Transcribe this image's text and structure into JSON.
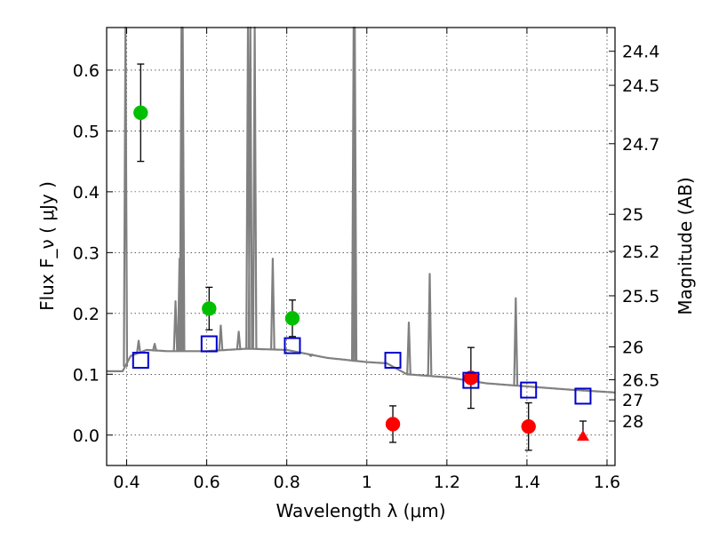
{
  "chart_data": {
    "type": "scatter",
    "title": "",
    "xlabel": "Wavelength  λ (μm)",
    "ylabel": "Flux  F_ν  ( μJy )",
    "ylabel_right": "Magnitude (AB)",
    "xlim": [
      0.35,
      1.62
    ],
    "ylim": [
      -0.05,
      0.67
    ],
    "grid": true,
    "legend": "none",
    "x_ticks": [
      0.4,
      0.6,
      0.8,
      1.0,
      1.2,
      1.4,
      1.6
    ],
    "x_tick_labels": [
      "0.4",
      "0.6",
      "0.8",
      "1",
      "1.2",
      "1.4",
      "1.6"
    ],
    "y_ticks": [
      0.0,
      0.1,
      0.2,
      0.3,
      0.4,
      0.5,
      0.6
    ],
    "y_tick_labels": [
      "0.0",
      "0.1",
      "0.2",
      "0.3",
      "0.4",
      "0.5",
      "0.6"
    ],
    "right_ticks": [
      {
        "label": "24.4",
        "flux": 0.631
      },
      {
        "label": "24.5",
        "flux": 0.575
      },
      {
        "label": "24.7",
        "flux": 0.479
      },
      {
        "label": "25",
        "flux": 0.363
      },
      {
        "label": "25.2",
        "flux": 0.302
      },
      {
        "label": "25.5",
        "flux": 0.229
      },
      {
        "label": "26",
        "flux": 0.145
      },
      {
        "label": "26.5",
        "flux": 0.091
      },
      {
        "label": "27",
        "flux": 0.058
      },
      {
        "label": "28",
        "flux": 0.023
      }
    ],
    "series": [
      {
        "marker": "circle",
        "color": "#00bf00",
        "points": [
          {
            "x": 0.435,
            "y": 0.53,
            "err": 0.08
          },
          {
            "x": 0.606,
            "y": 0.208,
            "err": 0.035
          },
          {
            "x": 0.814,
            "y": 0.192,
            "err": 0.03
          }
        ]
      },
      {
        "marker": "circle",
        "color": "#ff0000",
        "points": [
          {
            "x": 1.065,
            "y": 0.018,
            "err": 0.03
          },
          {
            "x": 1.26,
            "y": 0.094,
            "err": 0.05
          },
          {
            "x": 1.404,
            "y": 0.014,
            "err": 0.039
          }
        ]
      },
      {
        "marker": "triangle",
        "color": "#ff0000",
        "points": [
          {
            "x": 1.54,
            "y": -0.002,
            "err_up": 0.025
          }
        ]
      },
      {
        "marker": "open-square",
        "color": "#0000cc",
        "points": [
          {
            "x": 0.435,
            "y": 0.123
          },
          {
            "x": 0.606,
            "y": 0.15
          },
          {
            "x": 0.814,
            "y": 0.147
          },
          {
            "x": 1.065,
            "y": 0.123
          },
          {
            "x": 1.26,
            "y": 0.09
          },
          {
            "x": 1.404,
            "y": 0.074
          },
          {
            "x": 1.54,
            "y": 0.064
          }
        ]
      },
      {
        "marker": "line",
        "color": "#808080",
        "continuum": [
          [
            0.35,
            0.105
          ],
          [
            0.39,
            0.105
          ],
          [
            0.41,
            0.13
          ],
          [
            0.45,
            0.14
          ],
          [
            0.5,
            0.138
          ],
          [
            0.6,
            0.138
          ],
          [
            0.7,
            0.142
          ],
          [
            0.8,
            0.14
          ],
          [
            0.9,
            0.127
          ],
          [
            1.0,
            0.12
          ],
          [
            1.05,
            0.118
          ],
          [
            1.1,
            0.1
          ],
          [
            1.2,
            0.095
          ],
          [
            1.3,
            0.085
          ],
          [
            1.4,
            0.08
          ],
          [
            1.5,
            0.075
          ],
          [
            1.62,
            0.07
          ]
        ],
        "lines": [
          [
            0.397,
            0.67
          ],
          [
            0.43,
            0.155
          ],
          [
            0.47,
            0.15
          ],
          [
            0.522,
            0.22
          ],
          [
            0.532,
            0.29
          ],
          [
            0.537,
            0.67
          ],
          [
            0.54,
            0.67
          ],
          [
            0.635,
            0.18
          ],
          [
            0.68,
            0.17
          ],
          [
            0.703,
            0.67
          ],
          [
            0.709,
            0.67
          ],
          [
            0.72,
            0.67
          ],
          [
            0.765,
            0.29
          ],
          [
            0.86,
            0.13
          ],
          [
            0.967,
            0.67
          ],
          [
            0.97,
            0.67
          ],
          [
            1.105,
            0.185
          ],
          [
            1.157,
            0.265
          ],
          [
            1.372,
            0.225
          ]
        ]
      }
    ]
  }
}
